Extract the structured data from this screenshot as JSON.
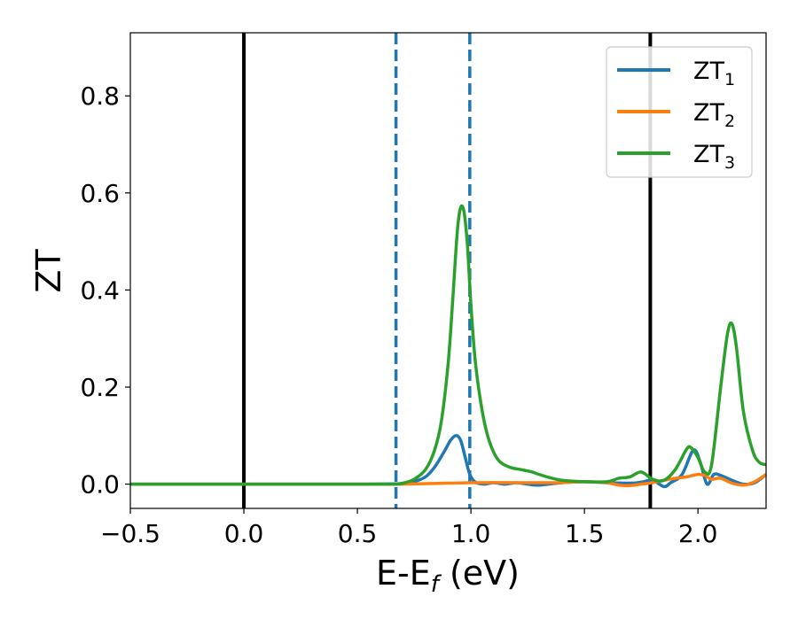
{
  "chart_data": {
    "type": "line",
    "xlabel_main": "E-E",
    "xlabel_sub": "f",
    "xlabel_unit": " (eV)",
    "ylabel": "ZT",
    "xlim": [
      -0.5,
      2.3
    ],
    "ylim": [
      -0.05,
      0.93
    ],
    "x_ticks": [
      -0.5,
      0.0,
      0.5,
      1.0,
      1.5,
      2.0
    ],
    "x_tick_labels": [
      "−0.5",
      "0.0",
      "0.5",
      "1.0",
      "1.5",
      "2.0"
    ],
    "y_ticks": [
      0.0,
      0.2,
      0.4,
      0.6,
      0.8
    ],
    "y_tick_labels": [
      "0.0",
      "0.2",
      "0.4",
      "0.6",
      "0.8"
    ],
    "grid": false,
    "legend_position": "top-right",
    "vlines": [
      {
        "x": 0.0,
        "style": "solid",
        "color": "#000000"
      },
      {
        "x": 1.79,
        "style": "solid",
        "color": "#000000"
      },
      {
        "x": 0.67,
        "style": "dashed",
        "color": "#1f77b4"
      },
      {
        "x": 0.995,
        "style": "dashed",
        "color": "#1f77b4"
      }
    ],
    "series": [
      {
        "name": "ZT",
        "sub": "1",
        "color": "#1f77b4",
        "x": [
          -0.5,
          0.0,
          0.5,
          0.7,
          0.75,
          0.8,
          0.84,
          0.88,
          0.91,
          0.935,
          0.955,
          0.975,
          0.995,
          1.02,
          1.06,
          1.1,
          1.15,
          1.2,
          1.25,
          1.3,
          1.4,
          1.5,
          1.6,
          1.7,
          1.75,
          1.8,
          1.85,
          1.88,
          1.93,
          1.98,
          2.01,
          2.04,
          2.07,
          2.1,
          2.15,
          2.2,
          2.25,
          2.3
        ],
        "y": [
          0.0,
          0.0,
          0.0,
          0.001,
          0.005,
          0.015,
          0.035,
          0.065,
          0.09,
          0.1,
          0.09,
          0.055,
          0.02,
          0.004,
          0.0,
          0.003,
          0.0,
          0.003,
          0.0,
          -0.002,
          0.003,
          0.005,
          0.003,
          0.002,
          0.004,
          0.008,
          -0.005,
          0.003,
          0.02,
          0.07,
          0.045,
          0.0,
          0.02,
          0.018,
          0.008,
          0.0,
          0.003,
          0.02
        ]
      },
      {
        "name": "ZT",
        "sub": "2",
        "color": "#ff7f0e",
        "x": [
          -0.5,
          0.0,
          0.5,
          0.7,
          1.0,
          1.2,
          1.4,
          1.5,
          1.6,
          1.65,
          1.7,
          1.75,
          1.8,
          1.85,
          1.9,
          1.95,
          2.0,
          2.03,
          2.06,
          2.1,
          2.15,
          2.2,
          2.25,
          2.3
        ],
        "y": [
          0.0,
          0.0,
          0.0,
          0.0,
          0.003,
          0.003,
          0.003,
          0.005,
          0.003,
          -0.002,
          -0.003,
          0.0,
          0.003,
          0.008,
          0.012,
          0.015,
          0.02,
          0.018,
          0.01,
          0.012,
          0.002,
          -0.002,
          0.005,
          0.02
        ]
      },
      {
        "name": "ZT",
        "sub": "3",
        "color": "#2ca02c",
        "x": [
          -0.5,
          0.0,
          0.5,
          0.65,
          0.7,
          0.75,
          0.8,
          0.84,
          0.87,
          0.9,
          0.92,
          0.94,
          0.955,
          0.97,
          0.985,
          1.0,
          1.02,
          1.05,
          1.08,
          1.12,
          1.17,
          1.22,
          1.27,
          1.3,
          1.35,
          1.4,
          1.5,
          1.6,
          1.65,
          1.7,
          1.75,
          1.8,
          1.85,
          1.9,
          1.95,
          1.97,
          2.0,
          2.03,
          2.06,
          2.1,
          2.13,
          2.15,
          2.17,
          2.2,
          2.24,
          2.27,
          2.3
        ],
        "y": [
          0.0,
          0.0,
          0.0,
          0.0,
          0.002,
          0.01,
          0.03,
          0.07,
          0.13,
          0.25,
          0.38,
          0.52,
          0.57,
          0.56,
          0.49,
          0.37,
          0.25,
          0.15,
          0.09,
          0.05,
          0.035,
          0.03,
          0.025,
          0.02,
          0.013,
          0.008,
          0.005,
          0.005,
          0.012,
          0.015,
          0.025,
          0.01,
          0.008,
          0.03,
          0.072,
          0.075,
          0.055,
          0.025,
          0.04,
          0.2,
          0.31,
          0.33,
          0.28,
          0.15,
          0.07,
          0.045,
          0.04
        ]
      }
    ]
  }
}
